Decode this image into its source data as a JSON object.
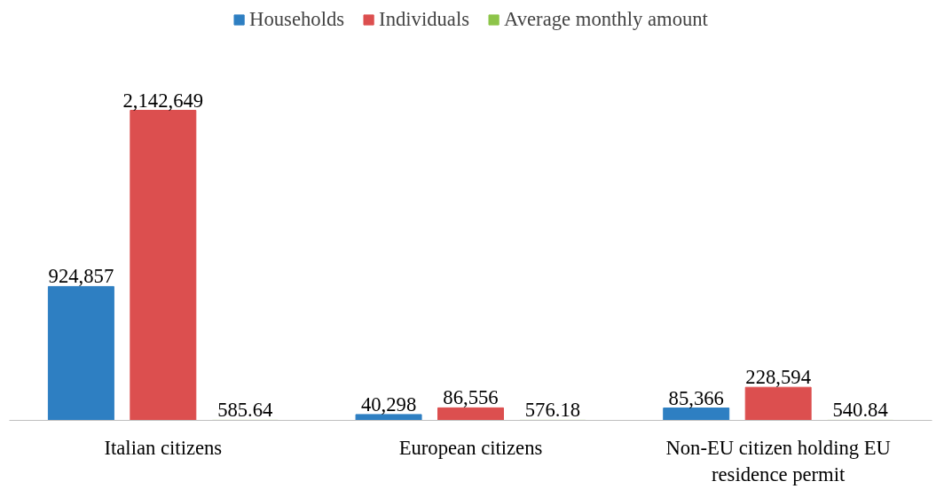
{
  "chart_data": {
    "type": "bar",
    "categories": [
      "Italian citizens",
      "European citizens",
      "Non-EU citizen holding EU residence permit"
    ],
    "series": [
      {
        "name": "Households",
        "color": "#2e7fc2",
        "values": [
          924857,
          40298,
          85366
        ],
        "value_labels": [
          "924,857",
          "40,298",
          "85,366"
        ]
      },
      {
        "name": "Individuals",
        "color": "#dc4f4f",
        "values": [
          2142649,
          86556,
          228594
        ],
        "value_labels": [
          "2,142,649",
          "86,556",
          "228,594"
        ]
      },
      {
        "name": "Average monthly amount",
        "color": "#8dc449",
        "values": [
          585.64,
          576.18,
          540.84
        ],
        "value_labels": [
          "585.64",
          "576.18",
          "540.84"
        ]
      }
    ],
    "legend": "top",
    "grid": false
  }
}
